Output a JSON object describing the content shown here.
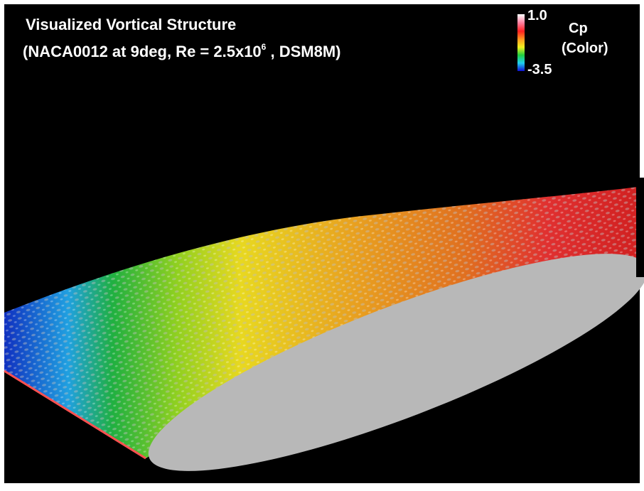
{
  "title": {
    "line1": "Visualized Vortical Structure",
    "line2_start": "(NACA0012 at 9deg, Re = 2.5x10",
    "line2_exponent": "6",
    "line2_end": " , DSM8M)"
  },
  "colorbar": {
    "max_label": "1.0",
    "min_label": "-3.5",
    "variable": "Cp",
    "note": "(Color)"
  }
}
